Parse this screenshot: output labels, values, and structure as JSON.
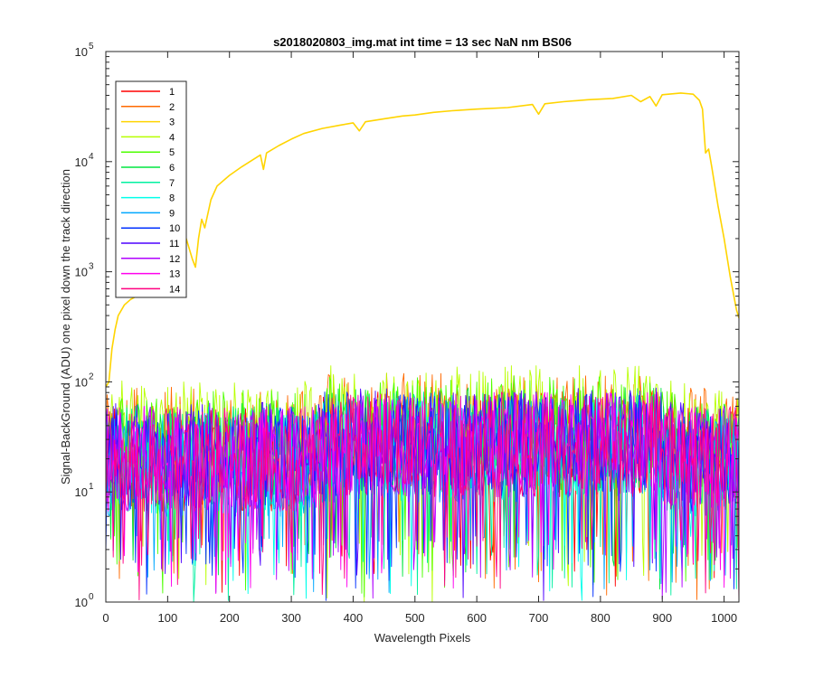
{
  "chart_data": {
    "type": "line",
    "title": "s2018020803_img.mat int time = 13 sec  NaN nm BS06",
    "xlabel": "Wavelength Pixels",
    "ylabel": "Signal-BackGround (ADU) one pixel down the track direction",
    "xlim": [
      0,
      1024
    ],
    "ylim": [
      1,
      100000
    ],
    "yscale": "log",
    "xticks": [
      0,
      100,
      200,
      300,
      400,
      500,
      600,
      700,
      800,
      900,
      1000
    ],
    "xtick_labels": [
      "0",
      "100",
      "200",
      "300",
      "400",
      "500",
      "600",
      "700",
      "800",
      "900",
      "1000"
    ],
    "yticks": [
      1,
      10,
      100,
      1000,
      10000,
      100000
    ],
    "ytick_labels": [
      {
        "base": "10",
        "exp": "0"
      },
      {
        "base": "10",
        "exp": "1"
      },
      {
        "base": "10",
        "exp": "2"
      },
      {
        "base": "10",
        "exp": "3"
      },
      {
        "base": "10",
        "exp": "4"
      },
      {
        "base": "10",
        "exp": "5"
      }
    ],
    "grid": false,
    "legend_position": "top-left",
    "series": [
      {
        "name": "1",
        "color": "#ff0000",
        "kind": "noise",
        "level": 20
      },
      {
        "name": "2",
        "color": "#ff6a00",
        "kind": "noise",
        "level": 30
      },
      {
        "name": "3",
        "color": "#ffd400",
        "kind": "signal",
        "x": [
          0,
          5,
          10,
          15,
          20,
          30,
          40,
          50,
          60,
          70,
          80,
          90,
          100,
          110,
          120,
          130,
          140,
          145,
          150,
          155,
          160,
          170,
          180,
          200,
          220,
          250,
          255,
          260,
          280,
          300,
          320,
          350,
          380,
          400,
          410,
          420,
          450,
          480,
          500,
          530,
          560,
          600,
          650,
          690,
          700,
          710,
          740,
          780,
          820,
          850,
          865,
          880,
          890,
          900,
          930,
          950,
          960,
          965,
          970,
          975,
          980,
          990,
          1000,
          1010,
          1020,
          1024
        ],
        "values": [
          90,
          100,
          200,
          300,
          400,
          500,
          560,
          600,
          800,
          1000,
          1400,
          1800,
          2000,
          2200,
          2500,
          2000,
          1300,
          1100,
          2000,
          3000,
          2500,
          4500,
          6000,
          7500,
          9000,
          11500,
          8500,
          12000,
          14000,
          16000,
          18000,
          20000,
          21500,
          22500,
          19000,
          23000,
          24500,
          26000,
          26500,
          28000,
          29000,
          30000,
          31000,
          33000,
          27000,
          33500,
          35000,
          36500,
          37500,
          40000,
          35000,
          39000,
          32000,
          40500,
          42000,
          41000,
          36000,
          30000,
          12000,
          13000,
          9000,
          4000,
          2000,
          900,
          450,
          380
        ]
      },
      {
        "name": "4",
        "color": "#b8ff00",
        "kind": "noise",
        "level": 35
      },
      {
        "name": "5",
        "color": "#4dff00",
        "kind": "noise",
        "level": 28
      },
      {
        "name": "6",
        "color": "#00e640",
        "kind": "noise",
        "level": 22
      },
      {
        "name": "7",
        "color": "#00f0a0",
        "kind": "noise",
        "level": 20
      },
      {
        "name": "8",
        "color": "#00ffea",
        "kind": "noise",
        "level": 18
      },
      {
        "name": "9",
        "color": "#00a8ff",
        "kind": "noise",
        "level": 18
      },
      {
        "name": "10",
        "color": "#0030ff",
        "kind": "noise",
        "level": 20
      },
      {
        "name": "11",
        "color": "#4d00ff",
        "kind": "noise",
        "level": 22
      },
      {
        "name": "12",
        "color": "#b000ff",
        "kind": "noise",
        "level": 20
      },
      {
        "name": "13",
        "color": "#ff00ee",
        "kind": "noise",
        "level": 20
      },
      {
        "name": "14",
        "color": "#ff0080",
        "kind": "noise",
        "level": 20
      }
    ]
  }
}
